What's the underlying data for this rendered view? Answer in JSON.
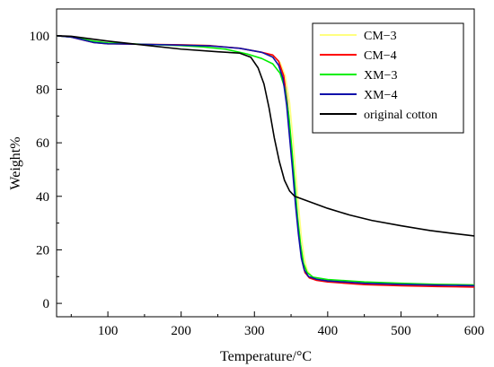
{
  "chart_data": {
    "type": "line",
    "title": "",
    "xlabel": "Temperature/°C",
    "ylabel": "Weight%",
    "xlim": [
      30,
      600
    ],
    "ylim": [
      -5,
      110
    ],
    "xticks": [
      100,
      200,
      300,
      400,
      500,
      600
    ],
    "yticks": [
      0,
      20,
      40,
      60,
      80,
      100
    ],
    "grid": false,
    "legend_position": "top-right",
    "series": [
      {
        "name": "CM−3",
        "color": "#ffff80",
        "points": [
          [
            30,
            100
          ],
          [
            50,
            99.5
          ],
          [
            80,
            97.5
          ],
          [
            100,
            97
          ],
          [
            150,
            96.8
          ],
          [
            200,
            96.6
          ],
          [
            240,
            96.3
          ],
          [
            280,
            95.3
          ],
          [
            310,
            93.8
          ],
          [
            325,
            92.5
          ],
          [
            335,
            90
          ],
          [
            342,
            85
          ],
          [
            348,
            75
          ],
          [
            352,
            63
          ],
          [
            356,
            50
          ],
          [
            360,
            37
          ],
          [
            364,
            25
          ],
          [
            368,
            17
          ],
          [
            372,
            12.5
          ],
          [
            378,
            10
          ],
          [
            385,
            9.3
          ],
          [
            400,
            8.6
          ],
          [
            450,
            7.8
          ],
          [
            500,
            7.4
          ],
          [
            550,
            7.1
          ],
          [
            600,
            6.9
          ]
        ]
      },
      {
        "name": "CM−4",
        "color": "#ff0000",
        "points": [
          [
            30,
            100
          ],
          [
            50,
            99.5
          ],
          [
            80,
            97.5
          ],
          [
            100,
            97
          ],
          [
            150,
            96.8
          ],
          [
            200,
            96.6
          ],
          [
            240,
            96.3
          ],
          [
            280,
            95.3
          ],
          [
            310,
            93.8
          ],
          [
            325,
            92.8
          ],
          [
            333,
            90.5
          ],
          [
            340,
            85
          ],
          [
            345,
            75
          ],
          [
            349,
            63
          ],
          [
            353,
            50
          ],
          [
            357,
            37
          ],
          [
            361,
            25
          ],
          [
            365,
            16
          ],
          [
            369,
            11.5
          ],
          [
            375,
            9.5
          ],
          [
            385,
            8.6
          ],
          [
            400,
            8
          ],
          [
            450,
            7
          ],
          [
            500,
            6.6
          ],
          [
            550,
            6.3
          ],
          [
            600,
            6.1
          ]
        ]
      },
      {
        "name": "XM−3",
        "color": "#00ee00",
        "points": [
          [
            30,
            100
          ],
          [
            50,
            99.5
          ],
          [
            80,
            98
          ],
          [
            100,
            97.3
          ],
          [
            150,
            96.8
          ],
          [
            200,
            96.3
          ],
          [
            230,
            95.8
          ],
          [
            260,
            95
          ],
          [
            290,
            93.2
          ],
          [
            310,
            91.5
          ],
          [
            325,
            89.5
          ],
          [
            335,
            86
          ],
          [
            342,
            80
          ],
          [
            347,
            70
          ],
          [
            351,
            58
          ],
          [
            355,
            45
          ],
          [
            359,
            32
          ],
          [
            363,
            22
          ],
          [
            367,
            15
          ],
          [
            372,
            11.5
          ],
          [
            380,
            9.8
          ],
          [
            400,
            8.9
          ],
          [
            450,
            8
          ],
          [
            500,
            7.5
          ],
          [
            550,
            7.1
          ],
          [
            600,
            6.9
          ]
        ]
      },
      {
        "name": "XM−4",
        "color": "#1010aa",
        "points": [
          [
            30,
            100
          ],
          [
            50,
            99.5
          ],
          [
            80,
            97.5
          ],
          [
            100,
            97
          ],
          [
            150,
            96.8
          ],
          [
            200,
            96.5
          ],
          [
            240,
            96.2
          ],
          [
            280,
            95.3
          ],
          [
            310,
            93.8
          ],
          [
            325,
            92
          ],
          [
            333,
            89
          ],
          [
            339,
            84
          ],
          [
            344,
            74
          ],
          [
            348,
            62
          ],
          [
            352,
            50
          ],
          [
            356,
            37
          ],
          [
            360,
            26
          ],
          [
            364,
            17
          ],
          [
            368,
            12.5
          ],
          [
            374,
            10
          ],
          [
            385,
            9
          ],
          [
            400,
            8.4
          ],
          [
            450,
            7.5
          ],
          [
            500,
            7.1
          ],
          [
            550,
            6.8
          ],
          [
            600,
            6.6
          ]
        ]
      },
      {
        "name": "original cotton",
        "color": "#000000",
        "points": [
          [
            30,
            100
          ],
          [
            50,
            99.8
          ],
          [
            100,
            98
          ],
          [
            150,
            96.5
          ],
          [
            200,
            95
          ],
          [
            250,
            94
          ],
          [
            280,
            93.5
          ],
          [
            295,
            92
          ],
          [
            305,
            88
          ],
          [
            313,
            82
          ],
          [
            320,
            73
          ],
          [
            327,
            62
          ],
          [
            334,
            53
          ],
          [
            341,
            46
          ],
          [
            348,
            42
          ],
          [
            355,
            40
          ],
          [
            365,
            39
          ],
          [
            380,
            37.5
          ],
          [
            400,
            35.5
          ],
          [
            430,
            33
          ],
          [
            460,
            31
          ],
          [
            500,
            29
          ],
          [
            540,
            27.2
          ],
          [
            575,
            26
          ],
          [
            600,
            25.2
          ]
        ]
      }
    ]
  }
}
